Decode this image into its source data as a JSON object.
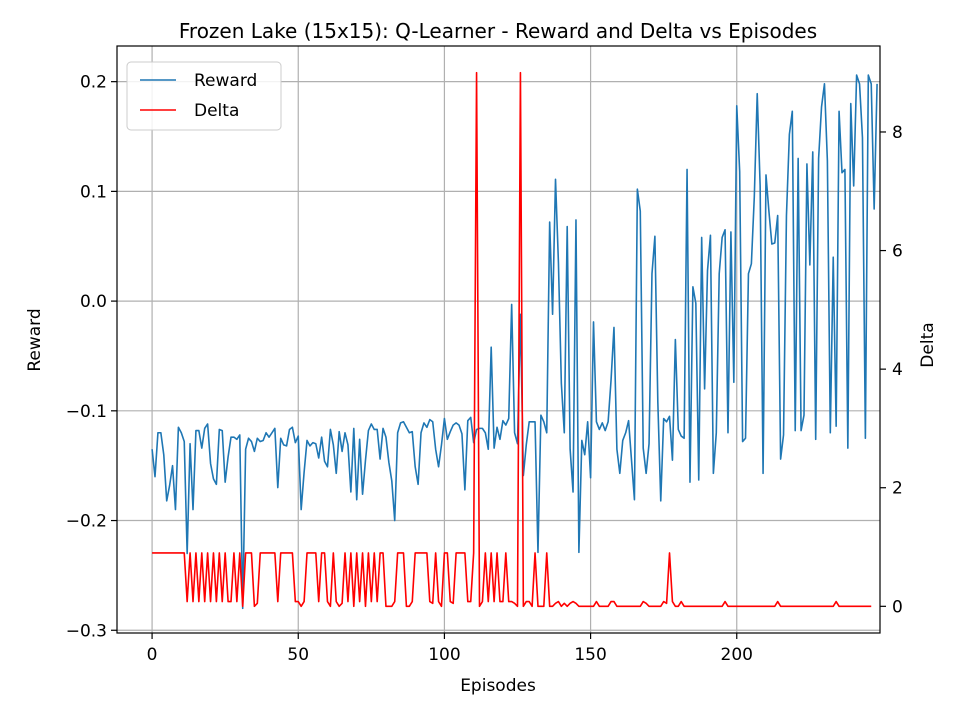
{
  "chart_data": {
    "type": "line",
    "title": "Frozen Lake (15x15): Q-Learner - Reward and Delta vs Episodes",
    "xlabel": "Episodes",
    "ylabel": "Reward",
    "y2label": "Delta",
    "xlim": [
      -12,
      249
    ],
    "ylim": [
      -0.3025,
      0.2325
    ],
    "y2lim": [
      -0.45,
      9.45
    ],
    "grid": true,
    "legend_position": "upper-left",
    "x_ticks": [
      0,
      50,
      100,
      150,
      200
    ],
    "x_tick_labels": [
      "0",
      "50",
      "100",
      "150",
      "200"
    ],
    "y_ticks": [
      -0.3,
      -0.2,
      -0.1,
      0.0,
      0.1,
      0.2
    ],
    "y_tick_labels": [
      "−0.3",
      "−0.2",
      "−0.1",
      "0.0",
      "0.1",
      "0.2"
    ],
    "y2_ticks": [
      0,
      2,
      4,
      6,
      8
    ],
    "y2_tick_labels": [
      "0",
      "2",
      "4",
      "6",
      "8"
    ],
    "series": [
      {
        "name": "Reward",
        "color": "#1f77b4",
        "axis": "left",
        "values": [
          -0.135,
          -0.16,
          -0.12,
          -0.12,
          -0.14,
          -0.182,
          -0.168,
          -0.15,
          -0.19,
          -0.115,
          -0.12,
          -0.128,
          -0.23,
          -0.13,
          -0.19,
          -0.118,
          -0.118,
          -0.134,
          -0.116,
          -0.112,
          -0.148,
          -0.162,
          -0.167,
          -0.117,
          -0.118,
          -0.165,
          -0.142,
          -0.124,
          -0.124,
          -0.126,
          -0.122,
          -0.28,
          -0.135,
          -0.125,
          -0.128,
          -0.137,
          -0.125,
          -0.128,
          -0.127,
          -0.12,
          -0.124,
          -0.12,
          -0.116,
          -0.17,
          -0.125,
          -0.131,
          -0.132,
          -0.117,
          -0.115,
          -0.129,
          -0.123,
          -0.19,
          -0.156,
          -0.127,
          -0.132,
          -0.129,
          -0.13,
          -0.143,
          -0.124,
          -0.146,
          -0.151,
          -0.117,
          -0.131,
          -0.157,
          -0.119,
          -0.137,
          -0.12,
          -0.131,
          -0.174,
          -0.116,
          -0.181,
          -0.126,
          -0.176,
          -0.145,
          -0.118,
          -0.112,
          -0.117,
          -0.117,
          -0.144,
          -0.116,
          -0.124,
          -0.147,
          -0.164,
          -0.2,
          -0.12,
          -0.111,
          -0.11,
          -0.115,
          -0.12,
          -0.119,
          -0.151,
          -0.167,
          -0.12,
          -0.111,
          -0.115,
          -0.108,
          -0.11,
          -0.135,
          -0.151,
          -0.131,
          -0.107,
          -0.126,
          -0.119,
          -0.113,
          -0.111,
          -0.113,
          -0.121,
          -0.172,
          -0.109,
          -0.106,
          -0.129,
          -0.117,
          -0.116,
          -0.116,
          -0.12,
          -0.135,
          -0.042,
          -0.134,
          -0.115,
          -0.126,
          -0.109,
          -0.113,
          -0.107,
          -0.003,
          -0.12,
          -0.13,
          -0.012,
          -0.159,
          -0.131,
          -0.11,
          -0.11,
          -0.11,
          -0.229,
          -0.104,
          -0.11,
          -0.12,
          0.072,
          -0.012,
          0.111,
          0.035,
          -0.075,
          -0.12,
          0.068,
          -0.135,
          -0.174,
          0.074,
          -0.229,
          -0.127,
          -0.14,
          -0.11,
          -0.161,
          -0.019,
          -0.11,
          -0.117,
          -0.111,
          -0.118,
          -0.11,
          -0.072,
          -0.024,
          -0.135,
          -0.157,
          -0.127,
          -0.12,
          -0.109,
          -0.145,
          -0.181,
          0.102,
          0.082,
          -0.134,
          -0.157,
          -0.13,
          0.025,
          0.059,
          -0.092,
          -0.182,
          -0.107,
          -0.11,
          -0.105,
          -0.145,
          -0.035,
          -0.117,
          -0.123,
          -0.125,
          0.12,
          -0.165,
          0.013,
          -0.002,
          -0.163,
          0.058,
          -0.08,
          0.028,
          0.06,
          -0.157,
          -0.12,
          0.025,
          0.058,
          0.065,
          -0.12,
          0.063,
          -0.074,
          0.178,
          0.118,
          -0.128,
          -0.125,
          0.025,
          0.034,
          0.095,
          0.189,
          0.105,
          -0.157,
          0.115,
          0.082,
          0.052,
          0.053,
          0.078,
          -0.144,
          -0.122,
          0.078,
          0.152,
          0.173,
          -0.118,
          0.13,
          -0.118,
          -0.104,
          0.125,
          0.033,
          0.136,
          -0.126,
          0.13,
          0.177,
          0.198,
          0.128,
          -0.12,
          0.04,
          -0.114,
          0.173,
          0.117,
          0.12,
          -0.134,
          0.18,
          0.105,
          0.206,
          0.198,
          0.149,
          -0.125,
          0.206,
          0.198,
          0.084,
          0.198
        ],
        "delta_unused": null
      },
      {
        "name": "Delta",
        "color": "#ff0000",
        "axis": "right",
        "values": [
          0.9,
          0.9,
          0.9,
          0.9,
          0.9,
          0.9,
          0.9,
          0.9,
          0.9,
          0.9,
          0.9,
          0.9,
          0.08,
          0.9,
          0.08,
          0.9,
          0.08,
          0.9,
          0.08,
          0.9,
          0.08,
          0.9,
          0.08,
          0.9,
          0.08,
          0.9,
          0.08,
          0.08,
          0.9,
          0.08,
          0.9,
          0.0,
          0.9,
          0.9,
          0.9,
          0.0,
          0.05,
          0.9,
          0.9,
          0.9,
          0.9,
          0.9,
          0.9,
          0.08,
          0.9,
          0.9,
          0.9,
          0.9,
          0.9,
          0.08,
          0.08,
          0.0,
          0.08,
          0.9,
          0.9,
          0.9,
          0.9,
          0.08,
          0.9,
          0.9,
          0.08,
          0.0,
          0.9,
          0.08,
          0.0,
          0.05,
          0.9,
          0.08,
          0.9,
          0.0,
          0.9,
          0.08,
          0.9,
          0.0,
          0.9,
          0.08,
          0.9,
          0.08,
          0.9,
          0.9,
          0.0,
          0.0,
          0.0,
          0.08,
          0.9,
          0.9,
          0.9,
          0.0,
          0.0,
          0.08,
          0.9,
          0.9,
          0.9,
          0.9,
          0.9,
          0.08,
          0.05,
          0.9,
          0.08,
          0.0,
          0.9,
          0.9,
          0.08,
          0.05,
          0.9,
          0.9,
          0.9,
          0.9,
          0.08,
          0.08,
          0.9,
          9.0,
          0.0,
          0.08,
          0.9,
          0.08,
          0.9,
          0.08,
          0.9,
          0.08,
          0.08,
          0.9,
          0.08,
          0.08,
          0.05,
          0.0,
          9.0,
          0.0,
          0.08,
          0.08,
          0.0,
          0.9,
          0.0,
          0.0,
          0.0,
          0.9,
          0.0,
          0.0,
          0.05,
          0.08,
          0.0,
          0.05,
          0.0,
          0.05,
          0.08,
          0.05,
          0.0,
          0.0,
          0.0,
          0.0,
          0.0,
          0.0,
          0.08,
          0.0,
          0.0,
          0.0,
          0.0,
          0.08,
          0.08,
          0.0,
          0.0,
          0.0,
          0.0,
          0.0,
          0.0,
          0.0,
          0.0,
          0.0,
          0.08,
          0.05,
          0.0,
          0.0,
          0.0,
          0.0,
          0.0,
          0.08,
          0.05,
          0.9,
          0.08,
          0.0,
          0.0,
          0.08,
          0.0,
          0.0,
          0.0,
          0.0,
          0.0,
          0.0,
          0.0,
          0.0,
          0.0,
          0.0,
          0.0,
          0.0,
          0.0,
          0.0,
          0.08,
          0.0,
          0.0,
          0.0,
          0.0,
          0.0,
          0.0,
          0.0,
          0.0,
          0.0,
          0.0,
          0.0,
          0.0,
          0.0,
          0.0,
          0.0,
          0.0,
          0.0,
          0.08,
          0.0,
          0.0,
          0.0,
          0.0,
          0.0,
          0.0,
          0.0,
          0.0,
          0.0,
          0.0,
          0.0,
          0.0,
          0.0,
          0.0,
          0.0,
          0.0,
          0.0,
          0.0,
          0.0,
          0.08,
          0.0,
          0.0,
          0.0,
          0.0,
          0.0,
          0.0,
          0.0,
          0.0,
          0.0,
          0.0,
          0.0,
          0.0
        ]
      }
    ]
  }
}
